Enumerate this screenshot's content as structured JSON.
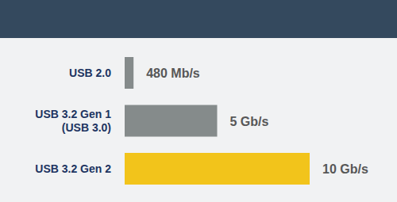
{
  "chart_data": {
    "type": "bar",
    "orientation": "horizontal",
    "categories": [
      "USB 2.0",
      "USB 3.2 Gen 1\n(USB 3.0)",
      "USB 3.2 Gen 2"
    ],
    "values": [
      0.48,
      5,
      10
    ],
    "value_labels": [
      "480 Mb/s",
      "5 Gb/s",
      "10 Gb/s"
    ],
    "colors": [
      "#858b8b",
      "#858b8b",
      "#f2c41b"
    ],
    "xlim": [
      0,
      10
    ],
    "data_labels": true,
    "tick_labels": false,
    "grid": false
  }
}
